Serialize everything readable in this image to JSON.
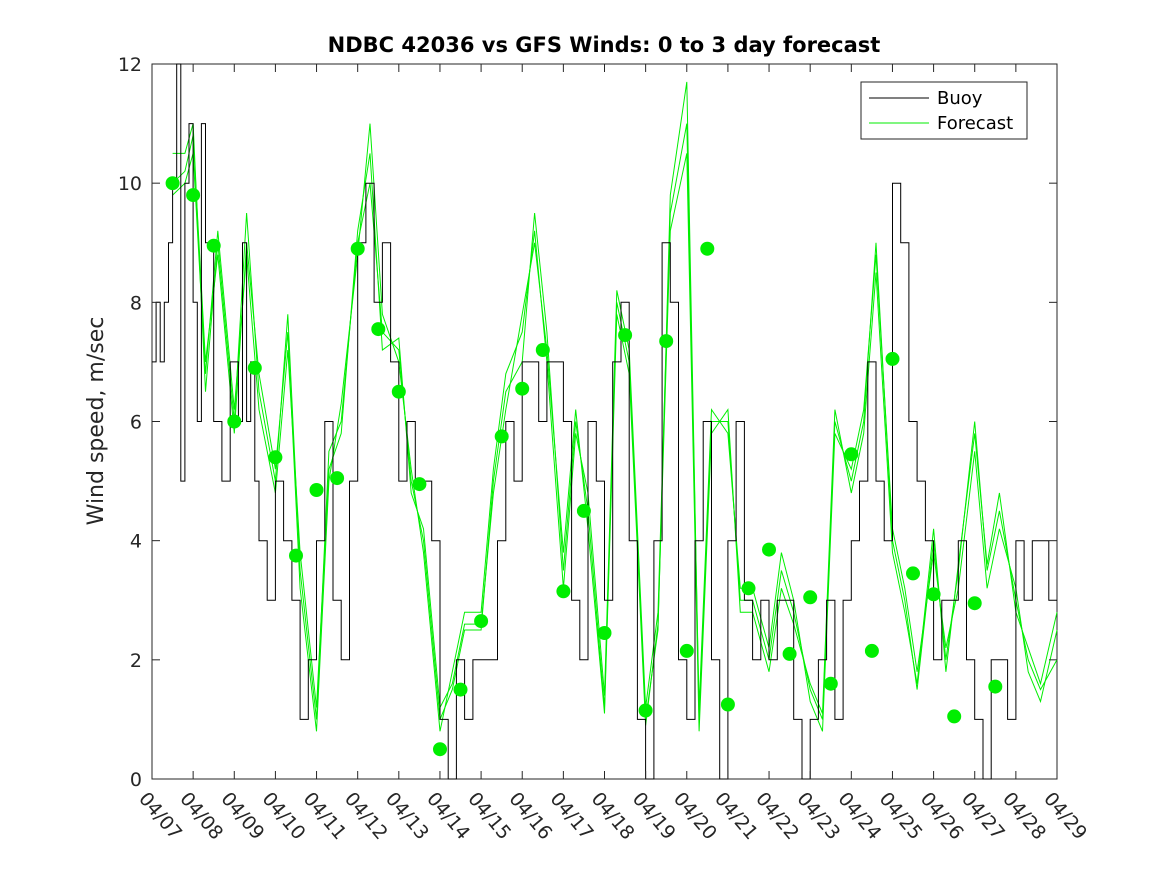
{
  "colors": {
    "buoy": "#000000",
    "forecast": "#00ee00",
    "dots": "#00ee00"
  },
  "chart_data": {
    "type": "line",
    "title": "NDBC 42036 vs GFS Winds: 0 to 3 day forecast",
    "xlabel": "",
    "ylabel": "Wind speed, m/sec",
    "xlim": [
      0,
      22
    ],
    "ylim": [
      0,
      12
    ],
    "yticks": [
      0,
      2,
      4,
      6,
      8,
      10,
      12
    ],
    "xtick_labels": [
      "04/07",
      "04/08",
      "04/09",
      "04/10",
      "04/11",
      "04/12",
      "04/13",
      "04/14",
      "04/15",
      "04/16",
      "04/17",
      "04/18",
      "04/19",
      "04/20",
      "04/21",
      "04/22",
      "04/23",
      "04/24",
      "04/25",
      "04/26",
      "04/27",
      "04/28",
      "04/29"
    ],
    "legend": {
      "position": "top-right",
      "entries": [
        "Buoy",
        "Forecast"
      ]
    },
    "grid": false,
    "buoy": {
      "x": [
        0,
        0.1,
        0.2,
        0.3,
        0.4,
        0.5,
        0.6,
        0.7,
        0.8,
        0.9,
        1.0,
        1.1,
        1.2,
        1.3,
        1.5,
        1.7,
        1.9,
        2.0,
        2.1,
        2.2,
        2.3,
        2.4,
        2.5,
        2.6,
        2.8,
        3.0,
        3.2,
        3.4,
        3.6,
        3.8,
        4.0,
        4.2,
        4.4,
        4.6,
        4.8,
        5.0,
        5.2,
        5.4,
        5.6,
        5.8,
        6.0,
        6.2,
        6.4,
        6.6,
        6.8,
        7.0,
        7.2,
        7.4,
        7.6,
        7.8,
        8.0,
        8.2,
        8.4,
        8.6,
        8.8,
        9.0,
        9.2,
        9.4,
        9.6,
        9.8,
        10.0,
        10.2,
        10.4,
        10.6,
        10.8,
        11.0,
        11.2,
        11.4,
        11.6,
        11.8,
        12.0,
        12.2,
        12.4,
        12.6,
        12.8,
        13.0,
        13.2,
        13.4,
        13.6,
        13.8,
        14.0,
        14.2,
        14.4,
        14.6,
        14.8,
        15.0,
        15.2,
        15.4,
        15.6,
        15.8,
        16.0,
        16.2,
        16.4,
        16.6,
        16.8,
        17.0,
        17.2,
        17.4,
        17.6,
        17.8,
        18.0,
        18.2,
        18.4,
        18.6,
        18.8,
        19.0,
        19.2,
        19.4,
        19.6,
        19.8,
        20.0,
        20.2,
        20.4,
        20.6,
        20.8,
        21.0,
        21.2,
        21.4,
        21.6,
        21.8,
        22.0
      ],
      "y": [
        7,
        8,
        7,
        8,
        9,
        10,
        12,
        5,
        10,
        11,
        8,
        6,
        11,
        9,
        6,
        5,
        7,
        7,
        6,
        9,
        6,
        7,
        5,
        4,
        3,
        5,
        4,
        3,
        1,
        2,
        4,
        6,
        3,
        2,
        5,
        9,
        10,
        8,
        9,
        7,
        5,
        6,
        5,
        5,
        4,
        1,
        0,
        2,
        1,
        2,
        2,
        2,
        4,
        6,
        5,
        7,
        7,
        6,
        7,
        7,
        6,
        3,
        2,
        6,
        5,
        3,
        7,
        8,
        4,
        1,
        0,
        4,
        9,
        8,
        2,
        1,
        4,
        6,
        2,
        0,
        4,
        6,
        3,
        2,
        3,
        2,
        3,
        3,
        1,
        0,
        1,
        2,
        3,
        1,
        3,
        4,
        5,
        7,
        5,
        4,
        10,
        9,
        6,
        5,
        4,
        2,
        3,
        3,
        4,
        2,
        1,
        0,
        2,
        2,
        1,
        4,
        3,
        4,
        4,
        3,
        3
      ],
      "note": "Buoy observed wind speed (approximate, stepped 1 m/s resolution)"
    },
    "forecast_runs": [
      {
        "x": [
          0.5,
          0.8,
          1.0,
          1.3,
          1.6,
          2.0,
          2.3,
          2.6,
          3.0,
          3.3,
          3.6,
          4.0,
          4.3,
          4.6,
          5.0,
          5.3,
          5.6,
          6.0,
          6.3,
          6.6,
          7.0,
          7.3,
          7.6,
          8.0,
          8.3,
          8.6,
          9.0,
          9.3,
          9.6,
          10.0,
          10.3,
          10.6,
          11.0,
          11.3,
          11.6,
          12.0,
          12.3,
          12.6,
          13.0,
          13.3,
          13.6,
          14.0,
          14.3,
          14.6,
          15.0,
          15.3,
          15.6,
          16.0,
          16.3,
          16.6,
          17.0,
          17.3,
          17.6,
          18.0,
          18.3,
          18.6,
          19.0,
          19.3,
          19.6,
          20.0,
          20.3,
          20.6,
          21.0,
          21.3,
          21.6,
          22.0
        ],
        "y": [
          10.5,
          10.5,
          11,
          6.5,
          9,
          6,
          9.5,
          6.5,
          5,
          7.8,
          3.5,
          1,
          5.5,
          6,
          9,
          10,
          7.5,
          7.2,
          5,
          4,
          1,
          1.5,
          2.5,
          2.5,
          5,
          6.5,
          7,
          9.5,
          7.5,
          3.5,
          6,
          4.5,
          1.2,
          8,
          7,
          1,
          2.5,
          9.8,
          11.7,
          1,
          6,
          6,
          3,
          3,
          2,
          3.5,
          2.8,
          1.5,
          1,
          6,
          5,
          6,
          9,
          4,
          3,
          1.5,
          4,
          2,
          3.5,
          6,
          3.5,
          4.5,
          3,
          2,
          1.5,
          2
        ]
      },
      {
        "x": [
          0.5,
          0.8,
          1.0,
          1.3,
          1.6,
          2.0,
          2.3,
          2.6,
          3.0,
          3.3,
          3.6,
          4.0,
          4.3,
          4.6,
          5.0,
          5.3,
          5.6,
          6.0,
          6.3,
          6.6,
          7.0,
          7.3,
          7.6,
          8.0,
          8.3,
          8.6,
          9.0,
          9.3,
          9.6,
          10.0,
          10.3,
          10.6,
          11.0,
          11.3,
          11.6,
          12.0,
          12.3,
          12.6,
          13.0,
          13.3,
          13.6,
          14.0,
          14.3,
          14.6,
          15.0,
          15.3,
          15.6,
          16.0,
          16.3,
          16.6,
          17.0,
          17.3,
          17.6,
          18.0,
          18.3,
          18.6,
          19.0,
          19.3,
          19.6,
          20.0,
          20.3,
          20.6,
          21.0,
          21.3,
          21.6,
          22.0
        ],
        "y": [
          10,
          10.2,
          10.8,
          7,
          8.8,
          5.8,
          9,
          6.8,
          5.2,
          7.5,
          3.2,
          0.8,
          5,
          6.3,
          8.8,
          11,
          7.8,
          7,
          5.2,
          3.8,
          0.8,
          1.8,
          2.8,
          2.8,
          5.2,
          6.8,
          7.5,
          9.2,
          7,
          3.2,
          5.8,
          4.8,
          1.4,
          8.2,
          7.2,
          1.2,
          2.8,
          9.5,
          11,
          1.2,
          6.2,
          5.8,
          3.2,
          3.2,
          2.2,
          3.8,
          3,
          1.3,
          0.8,
          5.8,
          5.2,
          6.2,
          8.8,
          4.2,
          3.2,
          1.8,
          3.8,
          2.2,
          3.2,
          5.5,
          3.2,
          4.2,
          3.2,
          1.8,
          1.3,
          2.5
        ]
      },
      {
        "x": [
          0.5,
          0.8,
          1.0,
          1.3,
          1.6,
          2.0,
          2.3,
          2.6,
          3.0,
          3.3,
          3.6,
          4.0,
          4.3,
          4.6,
          5.0,
          5.3,
          5.6,
          6.0,
          6.3,
          6.6,
          7.0,
          7.3,
          7.6,
          8.0,
          8.3,
          8.6,
          9.0,
          9.3,
          9.6,
          10.0,
          10.3,
          10.6,
          11.0,
          11.3,
          11.6,
          12.0,
          12.3,
          12.6,
          13.0,
          13.3,
          13.6,
          14.0,
          14.3,
          14.6,
          15.0,
          15.3,
          15.6,
          16.0,
          16.3,
          16.6,
          17.0,
          17.3,
          17.6,
          18.0,
          18.3,
          18.6,
          19.0,
          19.3,
          19.6,
          20.0,
          20.3,
          20.6,
          21.0,
          21.3,
          21.6,
          22.0
        ],
        "y": [
          9.8,
          10,
          10.5,
          6.8,
          9.2,
          6.2,
          8.8,
          6.2,
          4.8,
          7.2,
          3.8,
          1.2,
          5.2,
          5.8,
          9.2,
          10.5,
          7.2,
          7.4,
          4.8,
          4.2,
          1.2,
          1.6,
          2.6,
          2.6,
          4.8,
          6.2,
          7.8,
          9,
          7.2,
          3.8,
          6.2,
          4.2,
          1.1,
          7.8,
          6.8,
          0.9,
          2.6,
          9.2,
          10.5,
          0.8,
          5.8,
          6.2,
          2.8,
          2.8,
          1.8,
          3.2,
          2.6,
          1.6,
          1.1,
          6.2,
          4.8,
          5.8,
          8.5,
          3.8,
          2.8,
          1.6,
          4.2,
          1.8,
          3.6,
          5.8,
          3.6,
          4.8,
          2.8,
          2.2,
          1.6,
          2.8
        ]
      }
    ],
    "daily_dots": {
      "x": [
        0.5,
        1.0,
        1.5,
        2.0,
        2.5,
        3.0,
        3.5,
        4.0,
        4.5,
        5.0,
        5.5,
        6.0,
        6.5,
        7.0,
        7.5,
        8.0,
        8.5,
        9.0,
        9.5,
        10.0,
        10.5,
        11.0,
        11.5,
        12.0,
        12.5,
        13.0,
        13.5,
        14.0,
        14.5,
        15.0,
        15.5,
        16.0,
        16.5,
        17.0,
        17.5,
        18.0,
        18.5,
        19.0,
        19.5,
        20.0,
        20.5,
        21.0
      ],
      "y": [
        10,
        9.8,
        8.95,
        6,
        6.9,
        5.4,
        3.75,
        4.85,
        5.05,
        8.9,
        7.55,
        6.5,
        4.95,
        0.5,
        1.5,
        2.65,
        5.75,
        6.55,
        7.2,
        3.15,
        4.5,
        2.45,
        7.45,
        1.15,
        7.35,
        2.15,
        8.9,
        1.25,
        3.2,
        3.85,
        2.1,
        3.05,
        1.6,
        5.45,
        2.15,
        7.05,
        3.45,
        3.1,
        1.05,
        2.95,
        1.55,
        null
      ]
    }
  }
}
